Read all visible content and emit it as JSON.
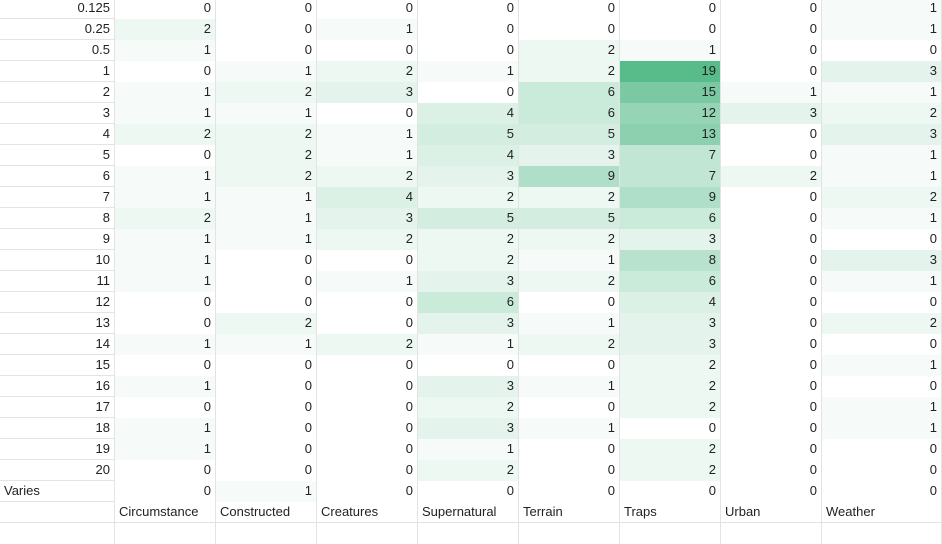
{
  "categories": [
    "Circumstance",
    "Constructed",
    "Creatures",
    "Supernatural",
    "Terrain",
    "Traps",
    "Urban",
    "Weather"
  ],
  "heat_color": "#57bb8a",
  "rows": [
    {
      "label": "0.125",
      "values": [
        0,
        0,
        0,
        0,
        0,
        0,
        0,
        1
      ]
    },
    {
      "label": "0.25",
      "values": [
        2,
        0,
        1,
        0,
        0,
        0,
        0,
        1
      ]
    },
    {
      "label": "0.5",
      "values": [
        1,
        0,
        0,
        0,
        2,
        1,
        0,
        0
      ]
    },
    {
      "label": "1",
      "values": [
        0,
        1,
        2,
        1,
        2,
        19,
        0,
        3
      ]
    },
    {
      "label": "2",
      "values": [
        1,
        2,
        3,
        0,
        6,
        15,
        1,
        1
      ]
    },
    {
      "label": "3",
      "values": [
        1,
        1,
        0,
        4,
        6,
        12,
        3,
        2
      ]
    },
    {
      "label": "4",
      "values": [
        2,
        2,
        1,
        5,
        5,
        13,
        0,
        3
      ]
    },
    {
      "label": "5",
      "values": [
        0,
        2,
        1,
        4,
        3,
        7,
        0,
        1
      ]
    },
    {
      "label": "6",
      "values": [
        1,
        2,
        2,
        3,
        9,
        7,
        2,
        1
      ]
    },
    {
      "label": "7",
      "values": [
        1,
        1,
        4,
        2,
        2,
        9,
        0,
        2
      ]
    },
    {
      "label": "8",
      "values": [
        2,
        1,
        3,
        5,
        5,
        6,
        0,
        1
      ]
    },
    {
      "label": "9",
      "values": [
        1,
        1,
        2,
        2,
        2,
        3,
        0,
        0
      ]
    },
    {
      "label": "10",
      "values": [
        1,
        0,
        0,
        2,
        1,
        8,
        0,
        3
      ]
    },
    {
      "label": "11",
      "values": [
        1,
        0,
        1,
        3,
        2,
        6,
        0,
        1
      ]
    },
    {
      "label": "12",
      "values": [
        0,
        0,
        0,
        6,
        0,
        4,
        0,
        0
      ]
    },
    {
      "label": "13",
      "values": [
        0,
        2,
        0,
        3,
        1,
        3,
        0,
        2
      ]
    },
    {
      "label": "14",
      "values": [
        1,
        1,
        2,
        1,
        2,
        3,
        0,
        0
      ]
    },
    {
      "label": "15",
      "values": [
        0,
        0,
        0,
        0,
        0,
        2,
        0,
        1
      ]
    },
    {
      "label": "16",
      "values": [
        1,
        0,
        0,
        3,
        1,
        2,
        0,
        0
      ]
    },
    {
      "label": "17",
      "values": [
        0,
        0,
        0,
        2,
        0,
        2,
        0,
        1
      ]
    },
    {
      "label": "18",
      "values": [
        1,
        0,
        0,
        3,
        1,
        0,
        0,
        1
      ]
    },
    {
      "label": "19",
      "values": [
        1,
        0,
        0,
        1,
        0,
        2,
        0,
        0
      ]
    },
    {
      "label": "20",
      "values": [
        0,
        0,
        0,
        2,
        0,
        2,
        0,
        0
      ]
    },
    {
      "label": "Varies",
      "values": [
        0,
        1,
        0,
        0,
        0,
        0,
        0,
        0
      ]
    }
  ]
}
